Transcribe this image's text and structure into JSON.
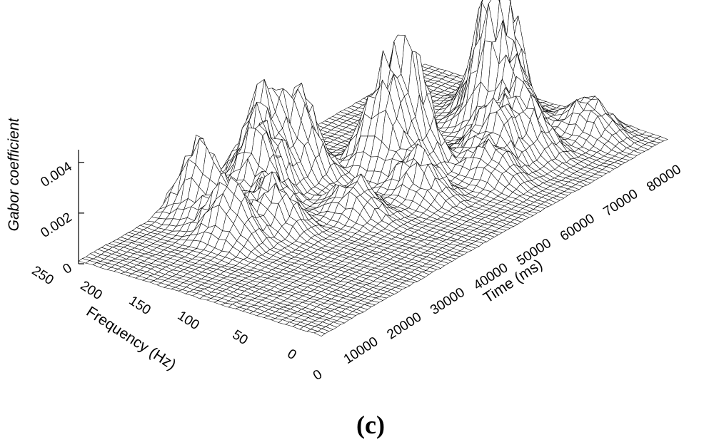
{
  "figure": {
    "caption": "(c)"
  },
  "chart_data": {
    "type": "surface",
    "zlabel": "Gabor coefficient",
    "xlabel": "Time (ms)",
    "ylabel": "Frequency (Hz)",
    "x_ticks": [
      "0",
      "10000",
      "20000",
      "30000",
      "40000",
      "50000",
      "60000",
      "70000",
      "80000"
    ],
    "y_ticks": [
      "0",
      "50",
      "100",
      "150",
      "200",
      "250"
    ],
    "z_ticks": [
      "0",
      "0.002",
      "0.004"
    ],
    "xlim": [
      0,
      80000
    ],
    "ylim": [
      0,
      250
    ],
    "zlim": [
      0,
      0.0045
    ],
    "x_tick_values": [
      0,
      10000,
      20000,
      30000,
      40000,
      50000,
      60000,
      70000,
      80000
    ],
    "y_tick_values": [
      0,
      50,
      100,
      150,
      200,
      250
    ],
    "z_tick_values": [
      0,
      0.002,
      0.004
    ],
    "peaks": [
      {
        "time": 68000,
        "freq": 120,
        "coef": 0.0052
      },
      {
        "time": 72000,
        "freq": 140,
        "coef": 0.0048
      },
      {
        "time": 52000,
        "freq": 140,
        "coef": 0.0038
      },
      {
        "time": 48000,
        "freq": 150,
        "coef": 0.0033
      },
      {
        "time": 40000,
        "freq": 200,
        "coef": 0.003
      },
      {
        "time": 35000,
        "freq": 215,
        "coef": 0.0032
      },
      {
        "time": 22000,
        "freq": 220,
        "coef": 0.0028
      },
      {
        "time": 30000,
        "freq": 200,
        "coef": 0.0026
      },
      {
        "time": 18000,
        "freq": 175,
        "coef": 0.002
      },
      {
        "time": 25000,
        "freq": 160,
        "coef": 0.0018
      },
      {
        "time": 60000,
        "freq": 90,
        "coef": 0.002
      },
      {
        "time": 65000,
        "freq": 80,
        "coef": 0.0022
      },
      {
        "time": 75000,
        "freq": 60,
        "coef": 0.0015
      },
      {
        "time": 45000,
        "freq": 100,
        "coef": 0.0016
      },
      {
        "time": 35000,
        "freq": 120,
        "coef": 0.0014
      },
      {
        "time": 55000,
        "freq": 70,
        "coef": 0.0012
      }
    ]
  }
}
